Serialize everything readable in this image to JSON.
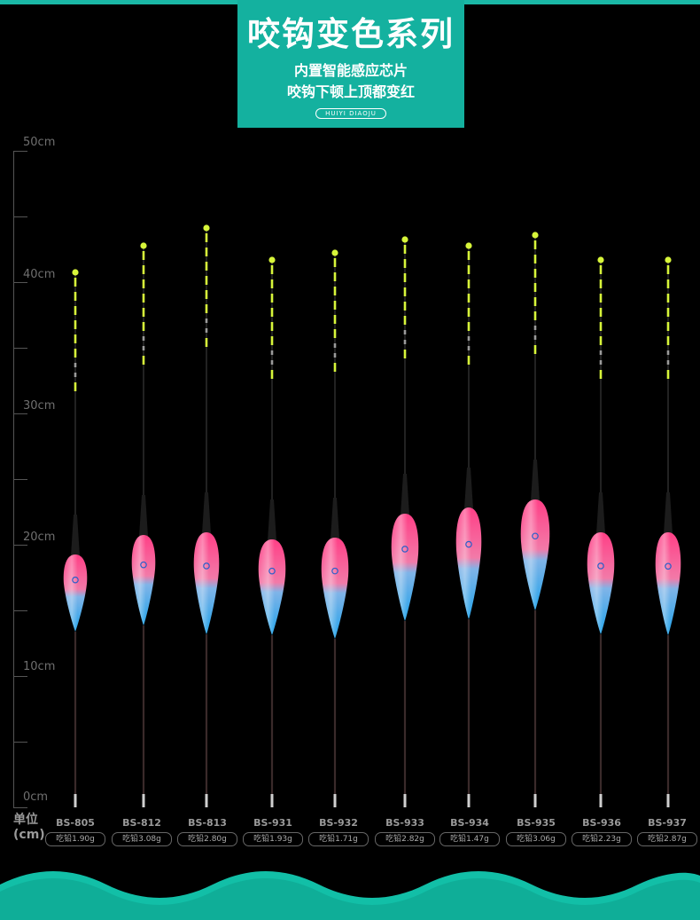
{
  "banner": {
    "title": "咬钩变色系列",
    "line1": "内置智能感应芯片",
    "line2": "咬钩下顿上顶都变红",
    "pill": "HUIYI DIAOJU"
  },
  "ruler": {
    "labels": [
      "50cm",
      "40cm",
      "30cm",
      "20cm",
      "10cm",
      "0cm"
    ],
    "unit_line1": "单位",
    "unit_line2": "(cm)"
  },
  "colors": {
    "teal": "#14b19f",
    "tip": "#d7f53a",
    "body_pink": "#f2467e",
    "body_blue": "#3aa6e6"
  },
  "floats": [
    {
      "model": "BS-805",
      "weight": "吃铅1.90g"
    },
    {
      "model": "BS-812",
      "weight": "吃铅3.08g"
    },
    {
      "model": "BS-813",
      "weight": "吃铅2.80g"
    },
    {
      "model": "BS-931",
      "weight": "吃铅1.93g"
    },
    {
      "model": "BS-932",
      "weight": "吃铅1.71g"
    },
    {
      "model": "BS-933",
      "weight": "吃铅2.82g"
    },
    {
      "model": "BS-934",
      "weight": "吃铅1.47g"
    },
    {
      "model": "BS-935",
      "weight": "吃铅3.06g"
    },
    {
      "model": "BS-936",
      "weight": "吃铅2.23g"
    },
    {
      "model": "BS-937",
      "weight": "吃铅2.87g"
    }
  ]
}
